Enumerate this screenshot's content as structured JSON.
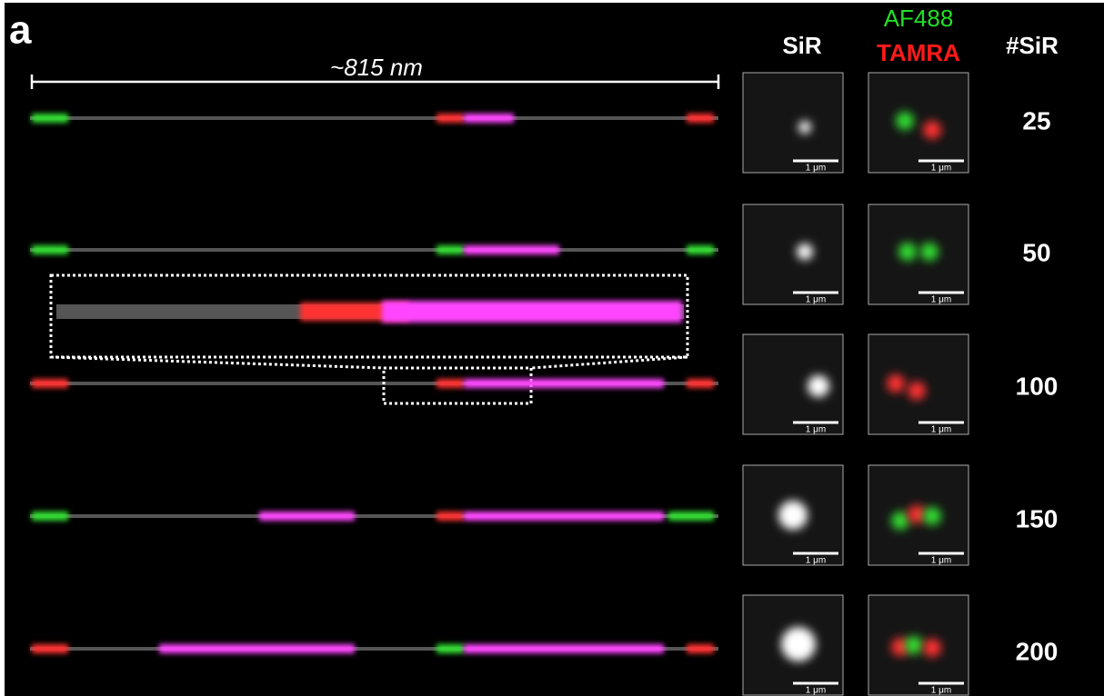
{
  "panel_label": "a",
  "scale_label": "~815 nm",
  "headers": {
    "sir": "SiR",
    "af488": "AF488",
    "tamra": "TAMRA",
    "count": "#SiR"
  },
  "rows": [
    {
      "count": "25",
      "sir_scale": "1 μm",
      "dual_scale": "1 μm"
    },
    {
      "count": "50",
      "sir_scale": "1 μm",
      "dual_scale": "1 μm"
    },
    {
      "count": "100",
      "sir_scale": "1 μm",
      "dual_scale": "1 μm"
    },
    {
      "count": "150",
      "sir_scale": "1 μm",
      "dual_scale": "1 μm"
    },
    {
      "count": "200",
      "sir_scale": "1 μm",
      "dual_scale": "1 μm"
    }
  ]
}
